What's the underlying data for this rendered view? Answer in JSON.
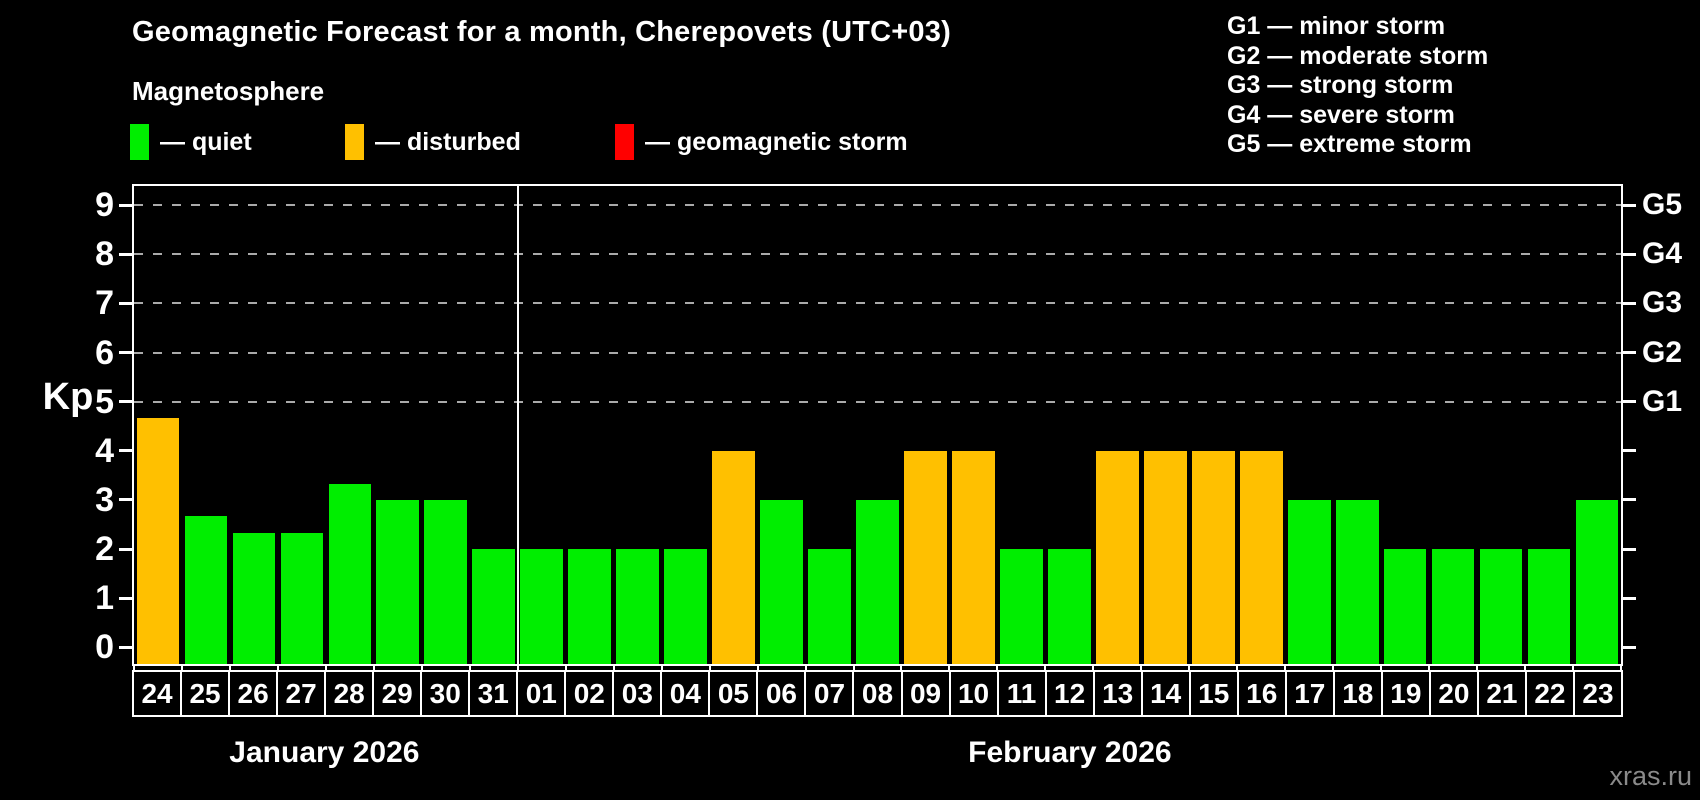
{
  "header": {
    "title": "Geomagnetic Forecast for a month, Cherepovets (UTC+03)",
    "subtitle": "Magnetosphere"
  },
  "legend": {
    "items": [
      {
        "label": "— quiet",
        "color": "#00ee00",
        "key": "quiet"
      },
      {
        "label": "— disturbed",
        "color": "#ffc000",
        "key": "disturbed"
      },
      {
        "label": "— geomagnetic storm",
        "color": "#ff0000",
        "key": "storm"
      }
    ]
  },
  "gscale": {
    "items": [
      "G1 — minor storm",
      "G2 — moderate storm",
      "G3 — strong storm",
      "G4 — severe storm",
      "G5 — extreme storm"
    ]
  },
  "watermark": "xras.ru",
  "chart_data": {
    "type": "bar",
    "title": "Geomagnetic Forecast for a month, Cherepovets (UTC+03)",
    "ylabel": "Kp",
    "ylim": [
      0,
      9
    ],
    "y_ticks": [
      "0",
      "1",
      "2",
      "3",
      "4",
      "5",
      "6",
      "7",
      "8",
      "9"
    ],
    "gridlines_at": [
      5,
      6,
      7,
      8,
      9
    ],
    "grid": "dashed-horizontal-at-storm-levels",
    "legend_position": "top-left",
    "right_axis": [
      {
        "kp": 5,
        "label": "G1"
      },
      {
        "kp": 6,
        "label": "G2"
      },
      {
        "kp": 7,
        "label": "G3"
      },
      {
        "kp": 8,
        "label": "G4"
      },
      {
        "kp": 9,
        "label": "G5"
      }
    ],
    "categories": [
      "24",
      "25",
      "26",
      "27",
      "28",
      "29",
      "30",
      "31",
      "01",
      "02",
      "03",
      "04",
      "05",
      "06",
      "07",
      "08",
      "09",
      "10",
      "11",
      "12",
      "13",
      "14",
      "15",
      "16",
      "17",
      "18",
      "19",
      "20",
      "21",
      "22",
      "23"
    ],
    "values": [
      4.67,
      2.67,
      2.33,
      2.33,
      3.33,
      3,
      3,
      2,
      2,
      2,
      2,
      2,
      4,
      3,
      2,
      3,
      4,
      4,
      2,
      2,
      4,
      4,
      4,
      4,
      3,
      3,
      2,
      2,
      2,
      2,
      3
    ],
    "status": [
      "disturbed",
      "quiet",
      "quiet",
      "quiet",
      "quiet",
      "quiet",
      "quiet",
      "quiet",
      "quiet",
      "quiet",
      "quiet",
      "quiet",
      "disturbed",
      "quiet",
      "quiet",
      "quiet",
      "disturbed",
      "disturbed",
      "quiet",
      "quiet",
      "disturbed",
      "disturbed",
      "disturbed",
      "disturbed",
      "quiet",
      "quiet",
      "quiet",
      "quiet",
      "quiet",
      "quiet",
      "quiet"
    ],
    "months": [
      {
        "label": "January 2026",
        "days": 8
      },
      {
        "label": "February 2026",
        "days": 23
      }
    ],
    "colors": {
      "quiet": "#00ee00",
      "disturbed": "#ffc000",
      "storm": "#ff0000"
    }
  }
}
